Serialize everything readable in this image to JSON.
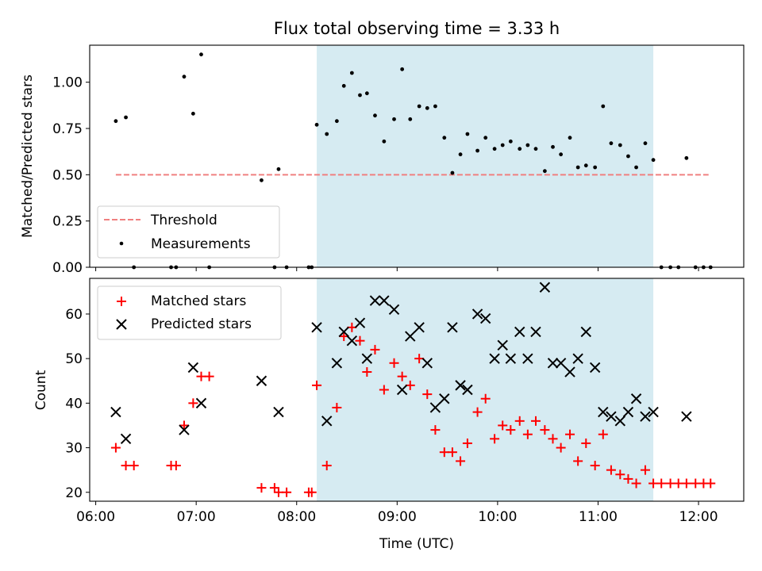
{
  "figure": {
    "title": "Flux total observing time = 3.33 h",
    "xlabel": "Time (UTC)",
    "x_ticks": [
      {
        "t": 6.0,
        "label": "06:00"
      },
      {
        "t": 7.0,
        "label": "07:00"
      },
      {
        "t": 8.0,
        "label": "08:00"
      },
      {
        "t": 9.0,
        "label": "09:00"
      },
      {
        "t": 10.0,
        "label": "10:00"
      },
      {
        "t": 11.0,
        "label": "11:00"
      },
      {
        "t": 12.0,
        "label": "12:00"
      }
    ],
    "xlim": [
      5.94,
      12.45
    ],
    "observing_window": [
      8.2,
      11.55
    ],
    "colors": {
      "window": "#add8e6",
      "threshold": "#f08080",
      "measurements": "#000000",
      "matched": "#ff0000",
      "predicted": "#000000"
    }
  },
  "chart_data": [
    {
      "type": "scatter",
      "ylabel": "Matched/Predicted stars",
      "ylim": [
        0,
        1.2
      ],
      "y_ticks": [
        "0.00",
        "0.25",
        "0.50",
        "0.75",
        "1.00"
      ],
      "threshold": {
        "name": "Threshold",
        "value": 0.5,
        "x_range": [
          6.2,
          12.1
        ]
      },
      "legend": {
        "position": "lower left"
      },
      "series": [
        {
          "name": "Measurements",
          "points": [
            [
              6.2,
              0.79
            ],
            [
              6.3,
              0.81
            ],
            [
              6.38,
              0.0
            ],
            [
              6.75,
              0.0
            ],
            [
              6.8,
              0.0
            ],
            [
              6.88,
              1.03
            ],
            [
              6.97,
              0.83
            ],
            [
              7.05,
              1.15
            ],
            [
              7.13,
              0.0
            ],
            [
              7.65,
              0.47
            ],
            [
              7.78,
              0.0
            ],
            [
              7.82,
              0.53
            ],
            [
              7.9,
              0.0
            ],
            [
              8.12,
              0.0
            ],
            [
              8.15,
              0.0
            ],
            [
              8.2,
              0.77
            ],
            [
              8.3,
              0.72
            ],
            [
              8.4,
              0.79
            ],
            [
              8.47,
              0.98
            ],
            [
              8.55,
              1.05
            ],
            [
              8.63,
              0.93
            ],
            [
              8.7,
              0.94
            ],
            [
              8.78,
              0.82
            ],
            [
              8.87,
              0.68
            ],
            [
              8.97,
              0.8
            ],
            [
              9.05,
              1.07
            ],
            [
              9.13,
              0.8
            ],
            [
              9.22,
              0.87
            ],
            [
              9.3,
              0.86
            ],
            [
              9.38,
              0.87
            ],
            [
              9.47,
              0.7
            ],
            [
              9.55,
              0.51
            ],
            [
              9.63,
              0.61
            ],
            [
              9.7,
              0.72
            ],
            [
              9.8,
              0.63
            ],
            [
              9.88,
              0.7
            ],
            [
              9.97,
              0.64
            ],
            [
              10.05,
              0.66
            ],
            [
              10.13,
              0.68
            ],
            [
              10.22,
              0.64
            ],
            [
              10.3,
              0.66
            ],
            [
              10.38,
              0.64
            ],
            [
              10.47,
              0.52
            ],
            [
              10.55,
              0.65
            ],
            [
              10.63,
              0.61
            ],
            [
              10.72,
              0.7
            ],
            [
              10.8,
              0.54
            ],
            [
              10.88,
              0.55
            ],
            [
              10.97,
              0.54
            ],
            [
              11.05,
              0.87
            ],
            [
              11.13,
              0.67
            ],
            [
              11.22,
              0.66
            ],
            [
              11.3,
              0.6
            ],
            [
              11.38,
              0.54
            ],
            [
              11.47,
              0.67
            ],
            [
              11.55,
              0.58
            ],
            [
              11.63,
              0.0
            ],
            [
              11.72,
              0.0
            ],
            [
              11.8,
              0.0
            ],
            [
              11.88,
              0.59
            ],
            [
              11.97,
              0.0
            ],
            [
              12.05,
              0.0
            ],
            [
              12.12,
              0.0
            ]
          ]
        }
      ]
    },
    {
      "type": "scatter",
      "ylabel": "Count",
      "ylim": [
        18,
        68
      ],
      "y_ticks": [
        "20",
        "30",
        "40",
        "50",
        "60"
      ],
      "legend": {
        "position": "upper left"
      },
      "series": [
        {
          "name": "Matched stars",
          "marker": "plus",
          "points": [
            [
              6.2,
              30
            ],
            [
              6.3,
              26
            ],
            [
              6.38,
              26
            ],
            [
              6.75,
              26
            ],
            [
              6.8,
              26
            ],
            [
              6.88,
              35
            ],
            [
              6.97,
              40
            ],
            [
              7.05,
              46
            ],
            [
              7.13,
              46
            ],
            [
              7.65,
              21
            ],
            [
              7.78,
              21
            ],
            [
              7.82,
              20
            ],
            [
              7.9,
              20
            ],
            [
              8.12,
              20
            ],
            [
              8.15,
              20
            ],
            [
              8.2,
              44
            ],
            [
              8.3,
              26
            ],
            [
              8.4,
              39
            ],
            [
              8.47,
              55
            ],
            [
              8.55,
              57
            ],
            [
              8.63,
              54
            ],
            [
              8.7,
              47
            ],
            [
              8.78,
              52
            ],
            [
              8.87,
              43
            ],
            [
              8.97,
              49
            ],
            [
              9.05,
              46
            ],
            [
              9.13,
              44
            ],
            [
              9.22,
              50
            ],
            [
              9.3,
              42
            ],
            [
              9.38,
              34
            ],
            [
              9.47,
              29
            ],
            [
              9.55,
              29
            ],
            [
              9.63,
              27
            ],
            [
              9.7,
              31
            ],
            [
              9.8,
              38
            ],
            [
              9.88,
              41
            ],
            [
              9.97,
              32
            ],
            [
              10.05,
              35
            ],
            [
              10.13,
              34
            ],
            [
              10.22,
              36
            ],
            [
              10.3,
              33
            ],
            [
              10.38,
              36
            ],
            [
              10.47,
              34
            ],
            [
              10.55,
              32
            ],
            [
              10.63,
              30
            ],
            [
              10.72,
              33
            ],
            [
              10.8,
              27
            ],
            [
              10.88,
              31
            ],
            [
              10.97,
              26
            ],
            [
              11.05,
              33
            ],
            [
              11.13,
              25
            ],
            [
              11.22,
              24
            ],
            [
              11.3,
              23
            ],
            [
              11.38,
              22
            ],
            [
              11.47,
              25
            ],
            [
              11.55,
              22
            ],
            [
              11.63,
              22
            ],
            [
              11.72,
              22
            ],
            [
              11.8,
              22
            ],
            [
              11.88,
              22
            ],
            [
              11.97,
              22
            ],
            [
              12.05,
              22
            ],
            [
              12.12,
              22
            ]
          ]
        },
        {
          "name": "Predicted stars",
          "marker": "x",
          "points": [
            [
              6.2,
              38
            ],
            [
              6.3,
              32
            ],
            [
              6.88,
              34
            ],
            [
              6.97,
              48
            ],
            [
              7.05,
              40
            ],
            [
              7.65,
              45
            ],
            [
              7.82,
              38
            ],
            [
              8.2,
              57
            ],
            [
              8.3,
              36
            ],
            [
              8.4,
              49
            ],
            [
              8.47,
              56
            ],
            [
              8.55,
              54
            ],
            [
              8.63,
              58
            ],
            [
              8.7,
              50
            ],
            [
              8.78,
              63
            ],
            [
              8.87,
              63
            ],
            [
              8.97,
              61
            ],
            [
              9.05,
              43
            ],
            [
              9.13,
              55
            ],
            [
              9.22,
              57
            ],
            [
              9.3,
              49
            ],
            [
              9.38,
              39
            ],
            [
              9.47,
              41
            ],
            [
              9.55,
              57
            ],
            [
              9.63,
              44
            ],
            [
              9.7,
              43
            ],
            [
              9.8,
              60
            ],
            [
              9.88,
              59
            ],
            [
              9.97,
              50
            ],
            [
              10.05,
              53
            ],
            [
              10.13,
              50
            ],
            [
              10.22,
              56
            ],
            [
              10.3,
              50
            ],
            [
              10.38,
              56
            ],
            [
              10.47,
              66
            ],
            [
              10.55,
              49
            ],
            [
              10.63,
              49
            ],
            [
              10.72,
              47
            ],
            [
              10.8,
              50
            ],
            [
              10.88,
              56
            ],
            [
              10.97,
              48
            ],
            [
              11.05,
              38
            ],
            [
              11.13,
              37
            ],
            [
              11.22,
              36
            ],
            [
              11.3,
              38
            ],
            [
              11.38,
              41
            ],
            [
              11.47,
              37
            ],
            [
              11.55,
              38
            ],
            [
              11.88,
              37
            ]
          ]
        }
      ]
    }
  ]
}
